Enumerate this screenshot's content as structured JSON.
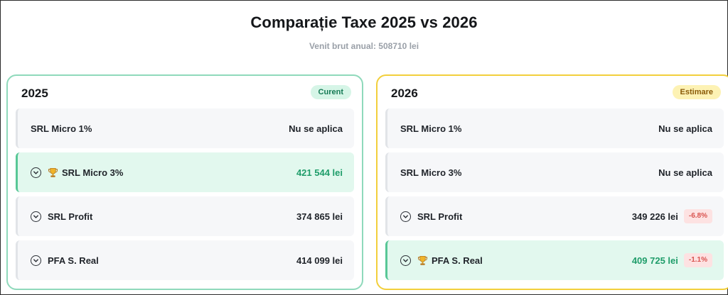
{
  "header": {
    "title": "Comparație Taxe 2025 vs 2026",
    "subtitle": "Venit brut anual: 508710 lei"
  },
  "colors": {
    "card_2025_border": "#8fd9bb",
    "card_2026_border": "#f2cf3c",
    "best_value": "#1f9d6a",
    "negative_delta": "#d9534f"
  },
  "cards": [
    {
      "year": "2025",
      "badge": "Curent",
      "rows": [
        {
          "label": "SRL Micro 1%",
          "value": "Nu se aplica",
          "expandable": false,
          "best": false
        },
        {
          "label": "SRL Micro 3%",
          "value": "421 544 lei",
          "expandable": true,
          "best": true,
          "icon": "trophy-icon"
        },
        {
          "label": "SRL Profit",
          "value": "374 865 lei",
          "expandable": true,
          "best": false
        },
        {
          "label": "PFA S. Real",
          "value": "414 099 lei",
          "expandable": true,
          "best": false
        }
      ]
    },
    {
      "year": "2026",
      "badge": "Estimare",
      "rows": [
        {
          "label": "SRL Micro 1%",
          "value": "Nu se aplica",
          "expandable": false,
          "best": false
        },
        {
          "label": "SRL Micro 3%",
          "value": "Nu se aplica",
          "expandable": false,
          "best": false
        },
        {
          "label": "SRL Profit",
          "value": "349 226 lei",
          "delta": "-6.8%",
          "expandable": true,
          "best": false
        },
        {
          "label": "PFA S. Real",
          "value": "409 725 lei",
          "delta": "-1.1%",
          "expandable": true,
          "best": true,
          "icon": "trophy-icon"
        }
      ]
    }
  ]
}
